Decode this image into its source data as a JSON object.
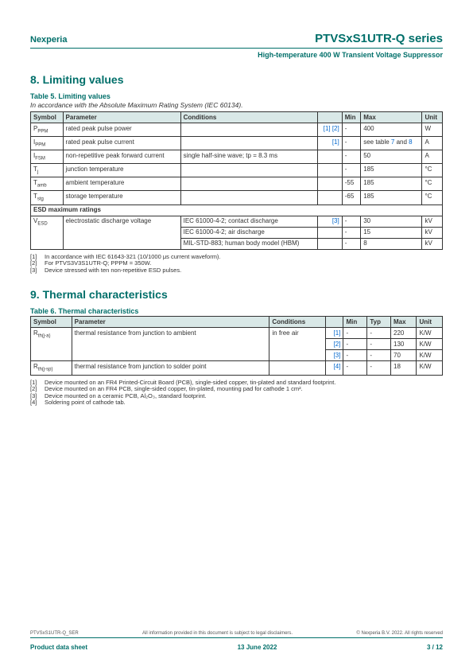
{
  "header": {
    "brand": "Nexperia",
    "title": "PTVSxS1UTR-Q series",
    "subtitle": "High-temperature 400 W Transient Voltage Suppressor"
  },
  "section8": {
    "heading": "8.  Limiting values",
    "table_title": "Table 5. Limiting values",
    "table_caption": "In accordance with the Absolute Maximum Rating System (IEC 60134).",
    "columns": [
      "Symbol",
      "Parameter",
      "Conditions",
      "",
      "Min",
      "Max",
      "Unit"
    ],
    "rows": [
      {
        "sym": "P",
        "sub": "PPM",
        "param": "rated peak pulse power",
        "cond": "",
        "refs": "[1] [2]",
        "min": "-",
        "max": "400",
        "unit": "W"
      },
      {
        "sym": "I",
        "sub": "PPM",
        "param": "rated peak pulse current",
        "cond": "",
        "refs": "[1]",
        "min": "-",
        "max": "see table 7 and 8",
        "unit": "A",
        "maxlink": true
      },
      {
        "sym": "I",
        "sub": "FSM",
        "param": "non-repetitive peak forward current",
        "cond": "single half-sine wave; tp = 8.3 ms",
        "refs": "",
        "min": "-",
        "max": "50",
        "unit": "A"
      },
      {
        "sym": "T",
        "sub": "j",
        "param": "junction temperature",
        "cond": "",
        "refs": "",
        "min": "-",
        "max": "185",
        "unit": "°C"
      },
      {
        "sym": "T",
        "sub": "amb",
        "param": "ambient temperature",
        "cond": "",
        "refs": "",
        "min": "-55",
        "max": "185",
        "unit": "°C"
      },
      {
        "sym": "T",
        "sub": "stg",
        "param": "storage temperature",
        "cond": "",
        "refs": "",
        "min": "-65",
        "max": "185",
        "unit": "°C"
      }
    ],
    "esd_heading": "ESD maximum ratings",
    "esd": {
      "sym": "V",
      "sub": "ESD",
      "param": "electrostatic discharge voltage",
      "lines": [
        {
          "cond": "IEC 61000-4-2; contact discharge",
          "refs": "[3]",
          "min": "-",
          "max": "30",
          "unit": "kV"
        },
        {
          "cond": "IEC 61000-4-2; air discharge",
          "refs": "",
          "min": "-",
          "max": "15",
          "unit": "kV"
        },
        {
          "cond": "MIL-STD-883; human body model (HBM)",
          "refs": "",
          "min": "-",
          "max": "8",
          "unit": "kV"
        }
      ]
    },
    "footnotes": [
      "In accordance with IEC 61643-321 (10/1000 μs current waveform).",
      "For PTVS3V3S1UTR-Q; PPPM = 350W.",
      "Device stressed with ten non-repetitive ESD pulses."
    ]
  },
  "section9": {
    "heading": "9.  Thermal characteristics",
    "table_title": "Table 6. Thermal characteristics",
    "columns": [
      "Symbol",
      "Parameter",
      "Conditions",
      "",
      "Min",
      "Typ",
      "Max",
      "Unit"
    ],
    "rows": [
      {
        "sym": "R",
        "sub": "th(j-a)",
        "param": "thermal resistance from junction to ambient",
        "cond": "in free air",
        "lines": [
          {
            "refs": "[1]",
            "min": "-",
            "typ": "-",
            "max": "220",
            "unit": "K/W"
          },
          {
            "refs": "[2]",
            "min": "-",
            "typ": "-",
            "max": "130",
            "unit": "K/W"
          },
          {
            "refs": "[3]",
            "min": "-",
            "typ": "-",
            "max": "70",
            "unit": "K/W"
          }
        ]
      },
      {
        "sym": "R",
        "sub": "th(j-sp)",
        "param": "thermal resistance from junction to solder point",
        "cond": "",
        "lines": [
          {
            "refs": "[4]",
            "min": "-",
            "typ": "-",
            "max": "18",
            "unit": "K/W"
          }
        ]
      }
    ],
    "footnotes": [
      "Device mounted on an FR4 Printed-Circuit Board (PCB), single-sided copper, tin-plated and standard footprint.",
      "Device mounted on an FR4 PCB, single-sided copper, tin-plated, mounting pad for cathode 1 cm².",
      "Device mounted on a ceramic PCB, Al₂O₃, standard footprint.",
      "Soldering point of cathode tab."
    ]
  },
  "footer": {
    "code": "PTVSxS1UTR-Q_SER",
    "disclaimer": "All information provided in this document is subject to legal disclaimers.",
    "copyright": "© Nexperia B.V. 2022. All rights reserved",
    "left": "Product data sheet",
    "center": "13 June 2022",
    "right": "3 / 12"
  }
}
